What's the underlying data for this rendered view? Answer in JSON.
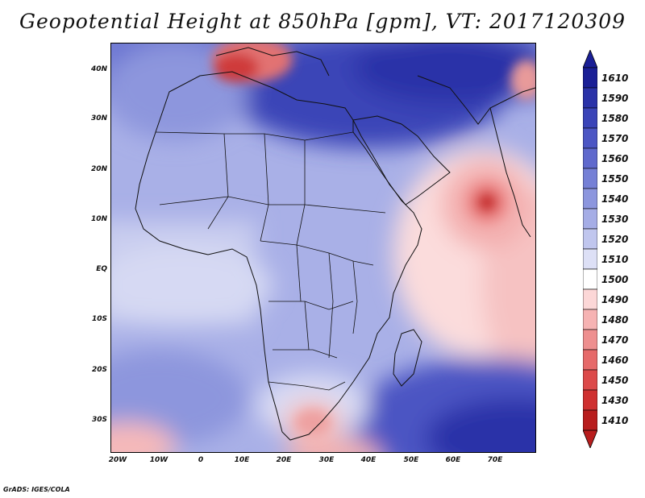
{
  "title": "Geopotential Height at 850hPa [gpm], VT: 2017120309",
  "footer": "GrADS: IGES/COLA",
  "axes": {
    "lat_ticks": [
      "40N",
      "30N",
      "20N",
      "10N",
      "EQ",
      "10S",
      "20S",
      "30S"
    ],
    "lon_ticks": [
      "20W",
      "10W",
      "0",
      "10E",
      "20E",
      "30E",
      "40E",
      "50E",
      "60E",
      "70E"
    ]
  },
  "colorbar": {
    "labels": [
      "1610",
      "1590",
      "1580",
      "1570",
      "1560",
      "1550",
      "1540",
      "1530",
      "1520",
      "1510",
      "1500",
      "1490",
      "1480",
      "1470",
      "1460",
      "1450",
      "1430",
      "1410"
    ],
    "colors": [
      "#1a1f96",
      "#2a32a8",
      "#3a44b8",
      "#4c56c4",
      "#5f69cd",
      "#7580d6",
      "#8c96de",
      "#a5ade6",
      "#c0c6ee",
      "#dde0f6",
      "#ffffff",
      "#fcd7d7",
      "#f6b3b3",
      "#ee8f8f",
      "#e66a6a",
      "#dc4a4a",
      "#cf3030",
      "#b81d1d"
    ],
    "top_color": "#1a1f96",
    "bottom_color": "#b81d1d"
  },
  "chart_data": {
    "type": "heatmap",
    "variable": "Geopotential Height at 850hPa",
    "units": "gpm",
    "valid_time": "2017120309",
    "lon_range": [
      -22,
      80
    ],
    "lat_range": [
      -37,
      45
    ],
    "features": [
      {
        "name": "low over Arabian Sea",
        "lon": 68,
        "lat": 13,
        "value": 1450
      },
      {
        "name": "low over Mediterranean/Italy",
        "lon": 15,
        "lat": 41,
        "value": 1460
      },
      {
        "name": "high over Middle East",
        "lon": 45,
        "lat": 33,
        "value": 1585
      },
      {
        "name": "high over southern Indian Ocean",
        "lon": 70,
        "lat": -30,
        "value": 1600
      },
      {
        "name": "low over South Africa",
        "lon": 28,
        "lat": -28,
        "value": 1490
      }
    ]
  }
}
